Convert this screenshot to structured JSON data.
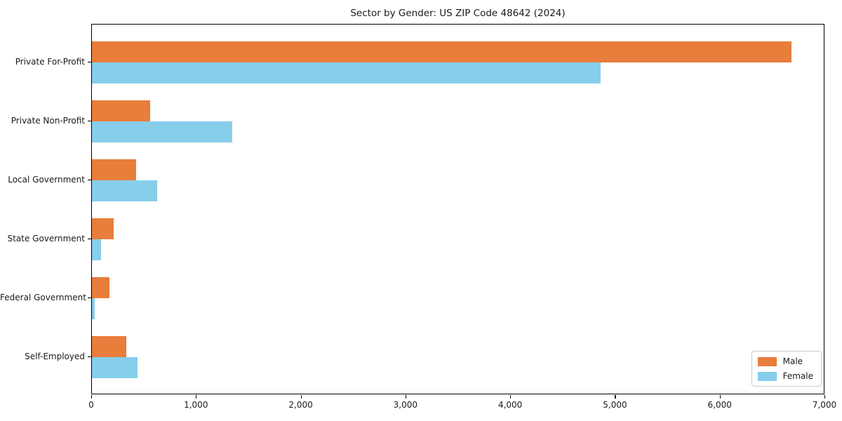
{
  "chart_data": {
    "type": "bar",
    "orientation": "horizontal",
    "title": "Sector by Gender: US ZIP Code 48642 (2024)",
    "categories": [
      "Private For-Profit",
      "Private Non-Profit",
      "Local Government",
      "State Government",
      "Federal Government",
      "Self-Employed"
    ],
    "series": [
      {
        "name": "Male",
        "color": "#e87d3c",
        "values": [
          6680,
          555,
          425,
          210,
          170,
          325
        ]
      },
      {
        "name": "Female",
        "color": "#87ceeb",
        "values": [
          4855,
          1340,
          620,
          85,
          30,
          435
        ]
      }
    ],
    "xlim": [
      0,
      7000
    ],
    "xticks": [
      0,
      1000,
      2000,
      3000,
      4000,
      5000,
      6000,
      7000
    ],
    "xtick_labels": [
      "0",
      "1,000",
      "2,000",
      "3,000",
      "4,000",
      "5,000",
      "6,000",
      "7,000"
    ],
    "ylabel": "",
    "xlabel": "",
    "grid": false,
    "legend_position": "lower right",
    "background_color": "#ffffff",
    "text_color": "#1a1a1a"
  }
}
